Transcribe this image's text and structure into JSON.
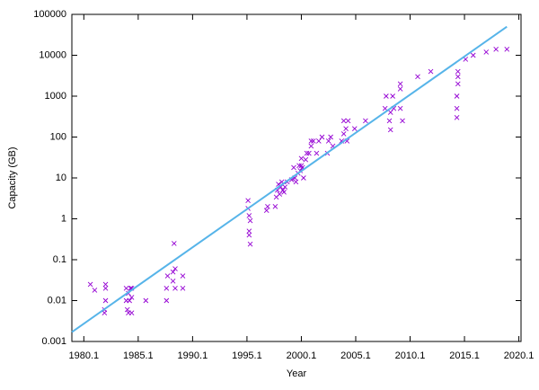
{
  "chart_data": {
    "type": "scatter",
    "xlabel": "Year",
    "ylabel": "Capacity (GB)",
    "xlim": [
      1979,
      2020.3
    ],
    "ylim": [
      0.001,
      100000
    ],
    "ylog": true,
    "grid": false,
    "xticks": [
      1980.1,
      1985.1,
      1990.1,
      1995.1,
      2000.1,
      2005.1,
      2010.1,
      2015.1,
      2020.1
    ],
    "yticks": [
      0.001,
      0.01,
      0.1,
      1,
      10,
      100,
      1000,
      10000,
      100000
    ],
    "series": [
      {
        "color": "#9400d3",
        "x": [
          1980.7,
          1981.1,
          1982.0,
          1982.0,
          1982.1,
          1982.1,
          1982.1,
          1984.0,
          1984.0,
          1984.1,
          1984.2,
          1984.2,
          1984.3,
          1984.4,
          1984.5,
          1984.5,
          1984.5,
          1985.8,
          1987.7,
          1987.7,
          1987.8,
          1988.3,
          1988.3,
          1988.4,
          1988.5,
          1988.5,
          1989.2,
          1989.2,
          1995.2,
          1995.2,
          1995.3,
          1995.3,
          1995.3,
          1995.4,
          1995.4,
          1996.9,
          1997.0,
          1997.7,
          1997.8,
          1997.9,
          1998.0,
          1998.1,
          1998.2,
          1998.3,
          1998.4,
          1998.5,
          1998.6,
          1998.8,
          1999.2,
          1999.4,
          1999.5,
          1999.6,
          1999.8,
          1999.9,
          2000.0,
          2000.1,
          2000.1,
          2000.2,
          2000.3,
          2000.5,
          2000.6,
          2000.8,
          2001.0,
          2001.0,
          2001.2,
          2001.5,
          2001.7,
          2002.0,
          2002.5,
          2002.6,
          2002.8,
          2003.0,
          2003.8,
          2004.0,
          2004.0,
          2004.2,
          2004.3,
          2004.4,
          2005.0,
          2006.0,
          2007.8,
          2007.9,
          2008.2,
          2008.3,
          2008.3,
          2008.5,
          2008.6,
          2009.2,
          2009.2,
          2009.4,
          2009.2,
          2010.8,
          2012.0,
          2014.4,
          2014.4,
          2014.4,
          2014.5,
          2014.5,
          2014.5,
          2015.2,
          2015.9,
          2017.1,
          2018.0,
          2019.0
        ],
        "values": [
          0.025,
          0.018,
          0.005,
          0.006,
          0.01,
          0.02,
          0.025,
          0.01,
          0.02,
          0.006,
          0.005,
          0.015,
          0.01,
          0.02,
          0.012,
          0.02,
          0.005,
          0.01,
          0.01,
          0.02,
          0.04,
          0.05,
          0.03,
          0.25,
          0.06,
          0.02,
          0.04,
          0.02,
          2.8,
          1.8,
          1.2,
          0.5,
          0.4,
          0.24,
          0.9,
          1.6,
          2,
          2,
          3.4,
          5,
          7,
          4,
          6,
          8,
          5,
          4.5,
          6,
          8,
          9,
          18,
          10,
          8,
          13,
          20,
          15,
          20,
          30,
          18,
          10,
          28,
          40,
          40,
          60,
          80,
          80,
          40,
          80,
          100,
          40,
          80,
          100,
          60,
          80,
          120,
          250,
          160,
          80,
          250,
          160,
          250,
          500,
          1000,
          250,
          150,
          400,
          1000,
          500,
          1500,
          2000,
          250,
          500,
          3000,
          4000,
          300,
          500,
          1000,
          2000,
          3000,
          4000,
          8000,
          10000,
          12000,
          14000,
          14000
        ]
      },
      {
        "type": "line",
        "color": "#56b4e9",
        "x": [
          1979,
          2019
        ],
        "values": [
          0.0017,
          50000
        ]
      }
    ]
  }
}
